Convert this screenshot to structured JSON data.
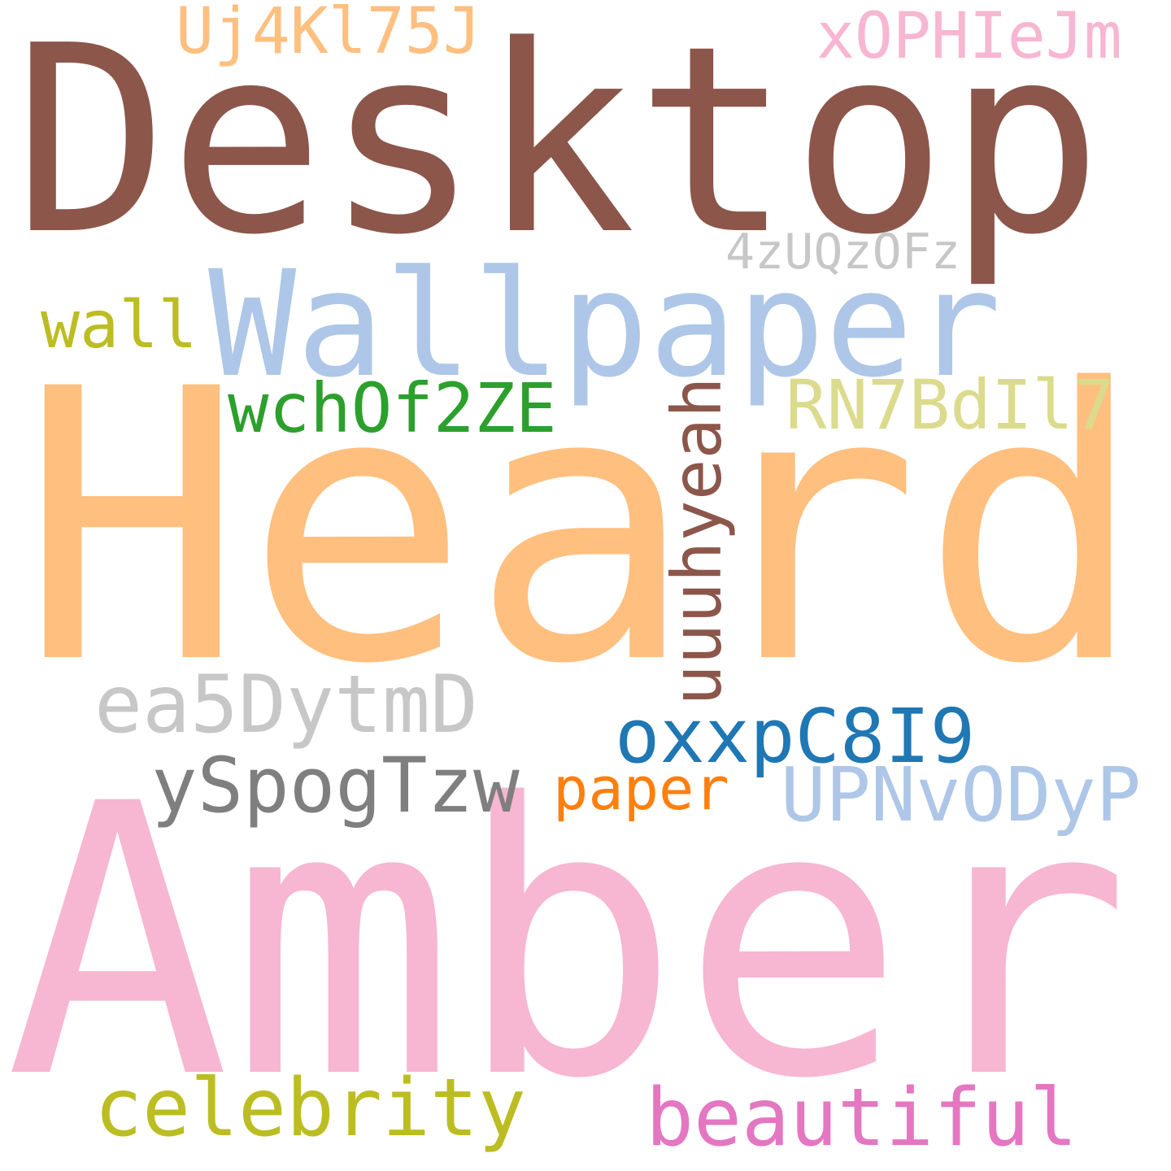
{
  "words": [
    {
      "text": "Desktop",
      "color": "#8c564b"
    },
    {
      "text": "Heard",
      "color": "#ffbf7f"
    },
    {
      "text": "Amber",
      "color": "#f7b6d2"
    },
    {
      "text": "Wallpaper",
      "color": "#aec7e8"
    },
    {
      "text": "Uj4Kl75J",
      "color": "#ffbf7f"
    },
    {
      "text": "xOPHIeJm",
      "color": "#f7b6d2"
    },
    {
      "text": "4zUQzOFz",
      "color": "#c7c7c7"
    },
    {
      "text": "wall",
      "color": "#bcbd22"
    },
    {
      "text": "wchOf2ZE",
      "color": "#2ca02c"
    },
    {
      "text": "RN7BdIl7",
      "color": "#dbdb8d"
    },
    {
      "text": "uuuhyeah",
      "color": "#8c564b",
      "orientation": "vertical"
    },
    {
      "text": "ea5DytmD",
      "color": "#c7c7c7"
    },
    {
      "text": "oxxpC8I9",
      "color": "#1f77b4"
    },
    {
      "text": "ySpogTzw",
      "color": "#7f7f7f"
    },
    {
      "text": "paper",
      "color": "#ff7f0e"
    },
    {
      "text": "UPNvODyP",
      "color": "#aec7e8"
    },
    {
      "text": "celebrity",
      "color": "#bcbd22"
    },
    {
      "text": "beautiful",
      "color": "#e377c2"
    }
  ]
}
